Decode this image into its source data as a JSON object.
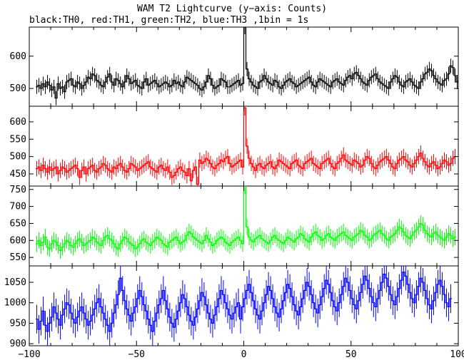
{
  "title": "WAM T2 Lightcurve (y−axis: Counts)",
  "subtitle": "black:TH0, red:TH1, green:TH2, blue:TH3 ,1bin = 1s",
  "chart_data": {
    "type": "line",
    "x_range": [
      -100,
      100
    ],
    "x_ticks": [
      -100,
      -50,
      0,
      50,
      100
    ],
    "x_tick_labels": [
      "−100",
      "−50",
      "0",
      "50",
      "100"
    ],
    "x_start": -97,
    "x_end": 98,
    "bin_width": 1,
    "panels": [
      {
        "series_label": "TH0",
        "color": "#000000",
        "ylim": [
          445,
          690
        ],
        "ticks": [
          500,
          600
        ],
        "tick_labels": [
          "500",
          "600"
        ],
        "errors": 22,
        "values": [
          505,
          510,
          500,
          515,
          505,
          520,
          510,
          495,
          505,
          470,
          515,
          500,
          505,
          490,
          520,
          525,
          530,
          510,
          505,
          520,
          515,
          500,
          510,
          520,
          535,
          530,
          545,
          540,
          525,
          520,
          510,
          505,
          520,
          535,
          545,
          520,
          510,
          530,
          525,
          515,
          505,
          520,
          540,
          530,
          515,
          520,
          525,
          510,
          505,
          500,
          520,
          530,
          510,
          515,
          520,
          525,
          515,
          505,
          510,
          515,
          520,
          515,
          505,
          510,
          525,
          515,
          520,
          510,
          505,
          520,
          535,
          530,
          525,
          520,
          515,
          510,
          500,
          495,
          505,
          520,
          540,
          530,
          510,
          500,
          505,
          510,
          530,
          525,
          520,
          505,
          505,
          510,
          515,
          520,
          525,
          510,
          515,
          690,
          560,
          530,
          520,
          510,
          505,
          500,
          520,
          525,
          540,
          530,
          520,
          515,
          510,
          525,
          520,
          505,
          500,
          510,
          520,
          525,
          530,
          520,
          515,
          505,
          510,
          515,
          520,
          525,
          530,
          535,
          520,
          510,
          505,
          520,
          530,
          525,
          520,
          515,
          510,
          505,
          520,
          525,
          530,
          520,
          515,
          510,
          525,
          535,
          540,
          530,
          545,
          550,
          540,
          530,
          520,
          515,
          510,
          525,
          535,
          540,
          545,
          530,
          520,
          515,
          510,
          505,
          500,
          520,
          530,
          540,
          535,
          520,
          510,
          505,
          520,
          525,
          530,
          520,
          510,
          505,
          500,
          520,
          530,
          545,
          550,
          560,
          555,
          540,
          530,
          520,
          515,
          510,
          525,
          530,
          545,
          570,
          565,
          540,
          520,
          525
        ]
      },
      {
        "series_label": "TH1",
        "color": "#ff0000",
        "ylim": [
          415,
          645
        ],
        "ticks": [
          450,
          500,
          550,
          600
        ],
        "tick_labels": [
          "450",
          "500",
          "550",
          "600"
        ],
        "errors": 22,
        "values": [
          465,
          470,
          460,
          475,
          465,
          455,
          470,
          460,
          465,
          470,
          450,
          460,
          470,
          465,
          455,
          460,
          465,
          470,
          475,
          465,
          440,
          460,
          470,
          450,
          465,
          470,
          475,
          460,
          455,
          465,
          470,
          480,
          475,
          465,
          460,
          455,
          470,
          465,
          475,
          480,
          470,
          460,
          455,
          465,
          480,
          475,
          470,
          460,
          465,
          470,
          475,
          480,
          485,
          470,
          465,
          460,
          455,
          470,
          475,
          465,
          460,
          470,
          455,
          440,
          445,
          455,
          465,
          470,
          460,
          455,
          445,
          465,
          430,
          460,
          470,
          420,
          490,
          480,
          485,
          495,
          490,
          480,
          470,
          465,
          475,
          480,
          490,
          485,
          495,
          500,
          480,
          470,
          475,
          480,
          485,
          490,
          470,
          640,
          530,
          495,
          480,
          470,
          460,
          475,
          480,
          470,
          465,
          475,
          480,
          485,
          470,
          465,
          475,
          490,
          485,
          480,
          475,
          470,
          465,
          480,
          485,
          490,
          475,
          470,
          465,
          480,
          485,
          490,
          495,
          480,
          475,
          470,
          465,
          480,
          485,
          490,
          495,
          480,
          470,
          465,
          480,
          485,
          495,
          505,
          490,
          485,
          480,
          475,
          490,
          485,
          480,
          470,
          475,
          490,
          500,
          495,
          480,
          470,
          465,
          475,
          485,
          490,
          495,
          500,
          490,
          480,
          470,
          465,
          480,
          490,
          495,
          500,
          490,
          485,
          475,
          470,
          480,
          490,
          500,
          510,
          495,
          485,
          475,
          470,
          480,
          485,
          475,
          465,
          470,
          480,
          490,
          485,
          475,
          480,
          495,
          500
        ]
      },
      {
        "series_label": "TH2",
        "color": "#00ff00",
        "ylim": [
          525,
          760
        ],
        "ticks": [
          550,
          600,
          650,
          700,
          750
        ],
        "tick_labels": [
          "550",
          "600",
          "650",
          "700",
          "750"
        ],
        "errors": 24,
        "values": [
          590,
          600,
          585,
          595,
          610,
          580,
          575,
          590,
          600,
          595,
          585,
          570,
          580,
          590,
          600,
          595,
          585,
          580,
          590,
          600,
          605,
          595,
          585,
          590,
          595,
          600,
          610,
          605,
          595,
          590,
          585,
          600,
          610,
          615,
          605,
          600,
          590,
          580,
          575,
          590,
          600,
          610,
          605,
          595,
          590,
          585,
          575,
          580,
          590,
          600,
          605,
          595,
          590,
          585,
          595,
          600,
          610,
          605,
          600,
          590,
          585,
          580,
          595,
          600,
          605,
          610,
          600,
          590,
          595,
          600,
          615,
          625,
          620,
          610,
          605,
          600,
          595,
          590,
          600,
          615,
          605,
          595,
          585,
          590,
          600,
          605,
          610,
          605,
          595,
          590,
          585,
          595,
          600,
          605,
          610,
          600,
          590,
          760,
          640,
          610,
          600,
          595,
          605,
          610,
          615,
          605,
          600,
          595,
          590,
          600,
          610,
          615,
          605,
          600,
          595,
          590,
          600,
          610,
          605,
          600,
          595,
          605,
          610,
          620,
          615,
          605,
          600,
          595,
          610,
          620,
          625,
          615,
          610,
          600,
          605,
          615,
          620,
          610,
          605,
          600,
          610,
          615,
          620,
          625,
          615,
          610,
          605,
          600,
          610,
          615,
          620,
          630,
          625,
          615,
          610,
          600,
          605,
          615,
          620,
          625,
          630,
          620,
          615,
          605,
          600,
          610,
          615,
          620,
          630,
          640,
          635,
          625,
          615,
          610,
          605,
          615,
          625,
          630,
          640,
          650,
          645,
          630,
          620,
          615,
          610,
          620,
          625,
          615,
          610,
          605,
          600,
          610,
          620,
          615,
          605,
          610
        ]
      },
      {
        "series_label": "TH3",
        "color": "#0000ff",
        "ylim": [
          895,
          1090
        ],
        "ticks": [
          900,
          950,
          1000,
          1050
        ],
        "tick_labels": [
          "900",
          "950",
          "1000",
          "1050"
        ],
        "errors": 35,
        "values": [
          960,
          935,
          955,
          980,
          945,
          930,
          950,
          965,
          990,
          975,
          960,
          945,
          970,
          985,
          1000,
          995,
          975,
          960,
          950,
          965,
          980,
          990,
          975,
          960,
          945,
          955,
          970,
          985,
          1000,
          1010,
          990,
          975,
          960,
          945,
          930,
          950,
          975,
          995,
          1020,
          1060,
          1030,
          1005,
          985,
          970,
          955,
          975,
          990,
          1010,
          1030,
          1015,
          995,
          980,
          960,
          945,
          930,
          955,
          975,
          995,
          1010,
          1030,
          1005,
          985,
          965,
          950,
          940,
          960,
          980,
          1000,
          1020,
          1010,
          990,
          970,
          955,
          945,
          965,
          985,
          1005,
          1025,
          1015,
          995,
          975,
          960,
          950,
          970,
          990,
          1010,
          1030,
          1020,
          1000,
          985,
          970,
          960,
          975,
          990,
          1000,
          960,
          990,
          1010,
          1030,
          1045,
          1025,
          1005,
          985,
          970,
          960,
          980,
          1000,
          1020,
          1040,
          1030,
          1010,
          990,
          975,
          965,
          985,
          1005,
          1025,
          1045,
          1035,
          1015,
          995,
          980,
          970,
          990,
          1010,
          1030,
          1050,
          1040,
          1020,
          1000,
          985,
          975,
          995,
          1015,
          1035,
          1055,
          1045,
          1025,
          1005,
          990,
          980,
          1000,
          1020,
          1040,
          1060,
          1050,
          1030,
          1010,
          995,
          985,
          1005,
          1025,
          1045,
          1065,
          1055,
          1035,
          1015,
          1000,
          990,
          1010,
          1030,
          1050,
          1070,
          1060,
          1040,
          1020,
          1005,
          995,
          1015,
          1035,
          1055,
          1075,
          1065,
          1045,
          1025,
          1010,
          1000,
          1020,
          1040,
          1060,
          1050,
          1030,
          1010,
          995,
          985,
          1005,
          1025,
          1045,
          1055,
          1040,
          1020,
          1000,
          990,
          1010
        ]
      }
    ]
  }
}
